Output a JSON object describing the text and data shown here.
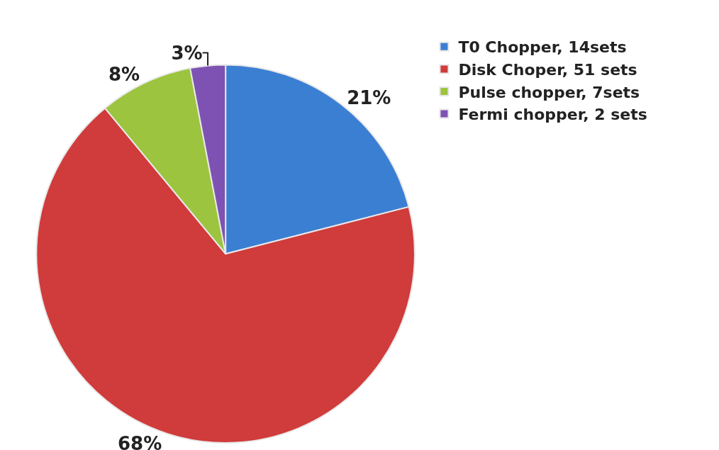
{
  "chart_data": {
    "type": "pie",
    "categories": [
      "T0 Chopper, 14sets",
      "Disk Choper, 51 sets",
      "Pulse chopper, 7sets",
      "Fermi chopper, 2 sets"
    ],
    "values": [
      21,
      68,
      8,
      3
    ],
    "value_labels": [
      "21%",
      "68%",
      "8%",
      "3%"
    ],
    "colors": [
      "#3b7fd3",
      "#d03b3b",
      "#9cc43e",
      "#7e52b3"
    ],
    "legend": "top right"
  }
}
